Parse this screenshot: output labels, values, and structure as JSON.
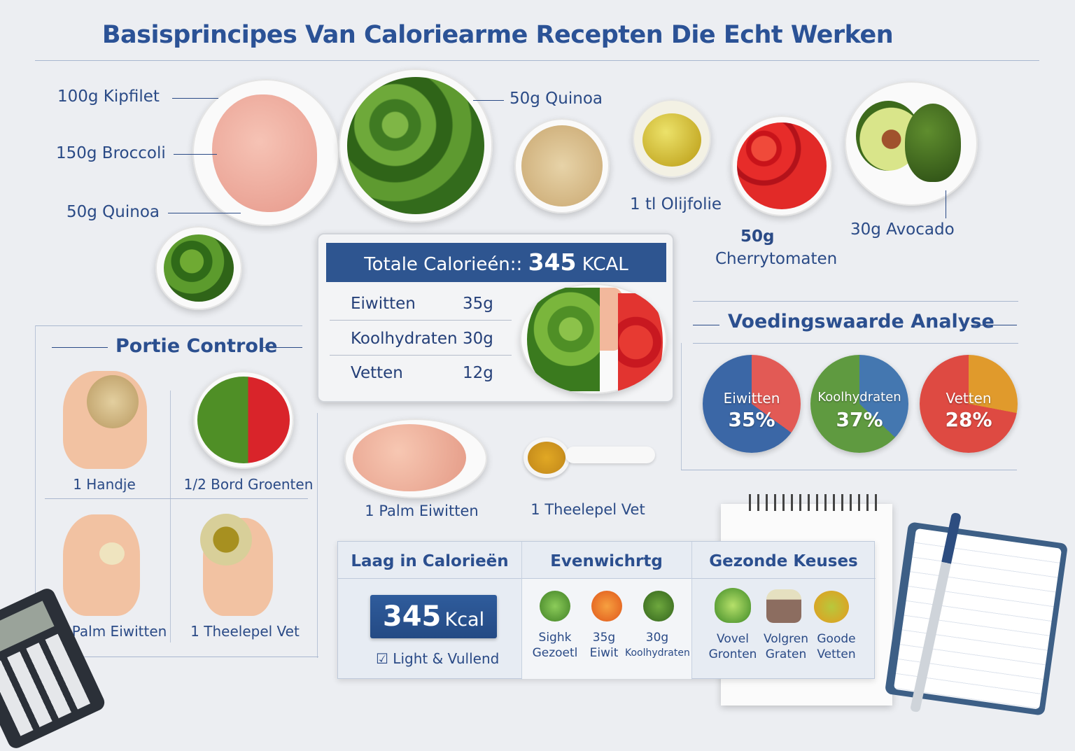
{
  "title": "Basisprincipes Van Caloriearme Recepten Die Echt Werken",
  "ingredients": {
    "kipfilet": "100g Kipfilet",
    "broccoli": "150g Broccoli",
    "quinoa_left": "50g Quinoa",
    "quinoa_top": "50g Quinoa",
    "olijfolie": "1 tl Olijfolie",
    "cherry_amount": "50g",
    "cherry_name": "Cherrytomaten",
    "avocado": "30g Avocado"
  },
  "calories_box": {
    "header_label": "Totale Calorieén::",
    "header_value": "345",
    "header_unit": "KCAL",
    "rows": [
      {
        "label": "Eiwitten",
        "value": "35g"
      },
      {
        "label": "Koolhydraten",
        "value": "30g"
      },
      {
        "label": "Vetten",
        "value": "12g"
      }
    ]
  },
  "portie": {
    "title": "Portie Controle",
    "items": [
      "1 Handje",
      "1/2 Bord Groenten",
      "1 Palm Eiwitten",
      "1 Theelepel Vet"
    ]
  },
  "middle": {
    "palm": "1 Palm Eiwitten",
    "spoon": "1 Theelepel Vet"
  },
  "analyse": {
    "title": "Voedingswaarde Analyse",
    "pies": [
      {
        "label": "Eiwitten",
        "percent": 35,
        "value_text": "35%",
        "main_color": "#3b67a6",
        "slice_color": "#e25a55"
      },
      {
        "label": "Koolhydraten",
        "percent": 37,
        "value_text": "37%",
        "main_color": "#5f9a40",
        "slice_color": "#4477b0"
      },
      {
        "label": "Vetten",
        "percent": 28,
        "value_text": "28%",
        "main_color": "#de4a42",
        "slice_color": "#e09a2c"
      }
    ]
  },
  "bottom": {
    "col1": {
      "title": "Laag in Calorieën",
      "kcal_value": "345",
      "kcal_unit": "Kcal",
      "note": "Light & Vullend"
    },
    "col2": {
      "title": "Evenwichrtg",
      "items": [
        [
          "Sighk",
          "Gezoetl"
        ],
        [
          "35g",
          "Eiwit"
        ],
        [
          "30g",
          "Koolhydraten"
        ]
      ]
    },
    "col3": {
      "title": "Gezonde Keuses",
      "items": [
        [
          "Vovel",
          "Gronten"
        ],
        [
          "Volgren",
          "Graten"
        ],
        [
          "Goode",
          "Vetten"
        ]
      ]
    }
  },
  "colors": {
    "accent": "#2b5296",
    "header_bg": "#2e5590",
    "background": "#eceef2"
  }
}
